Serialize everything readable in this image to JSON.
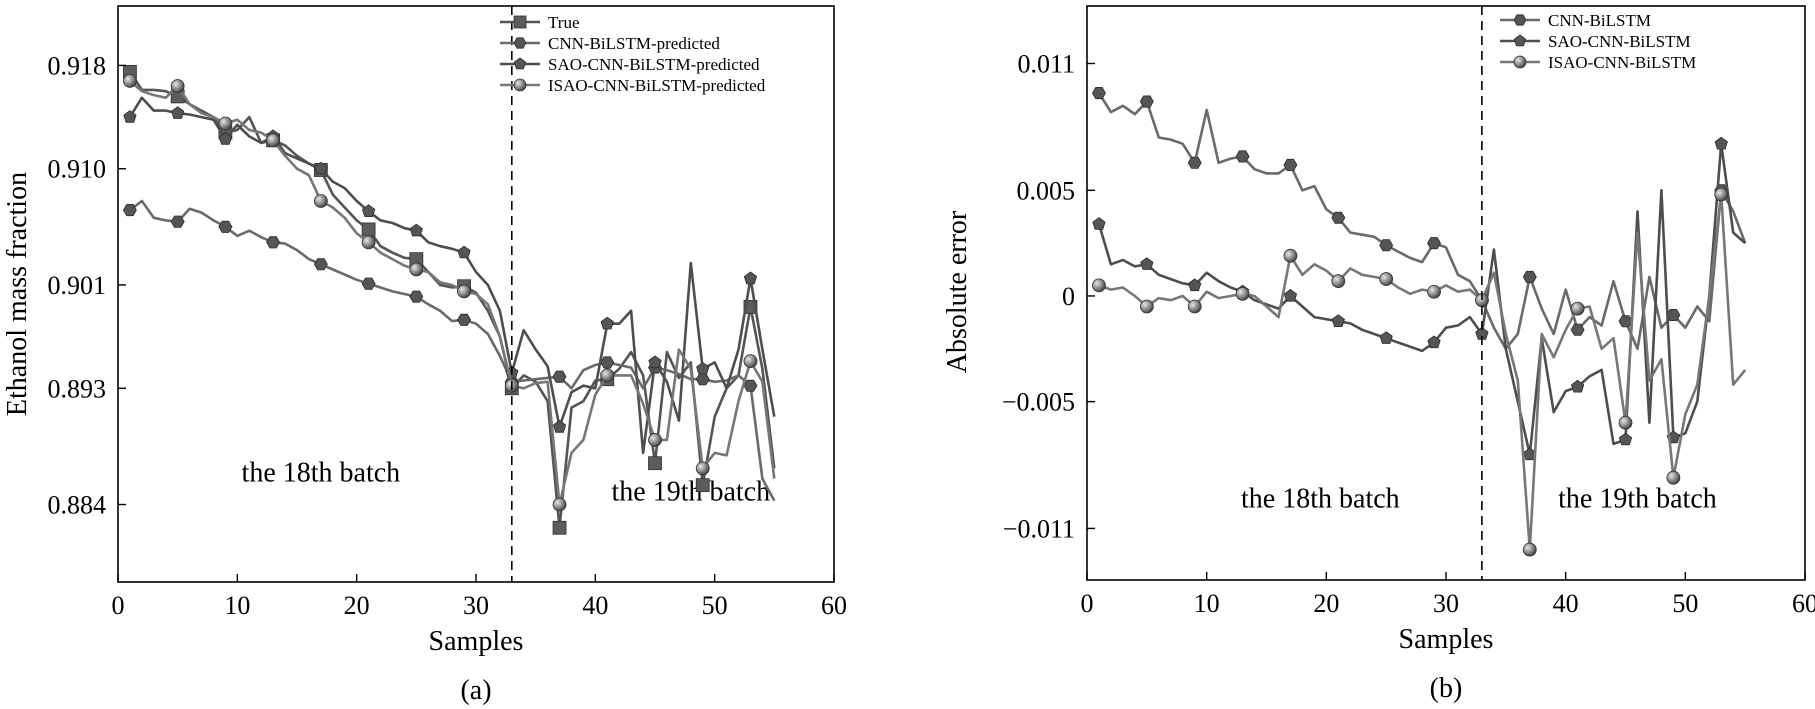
{
  "chart_data": [
    {
      "id": "a",
      "type": "line",
      "caption": "(a)",
      "xlabel": "Samples",
      "ylabel": "Ethanol mass fraction",
      "xlim": [
        0,
        60
      ],
      "ylim": [
        0.878,
        0.9226
      ],
      "xticks": [
        0,
        10,
        20,
        30,
        40,
        50,
        60
      ],
      "yticks": [
        0.884,
        0.893,
        0.901,
        0.91,
        0.918
      ],
      "ytick_labels": [
        "0.884",
        "0.893",
        "0.901",
        "0.910",
        "0.918"
      ],
      "grid": false,
      "legend_position": "top-right",
      "divider_x": 33,
      "annotations": [
        {
          "text": "the 18th batch",
          "x": 17,
          "y": 0.8858
        },
        {
          "text": "the 19th batch",
          "x": 48,
          "y": 0.8843
        }
      ],
      "x": [
        1,
        2,
        3,
        4,
        5,
        6,
        7,
        8,
        9,
        10,
        11,
        12,
        13,
        14,
        15,
        16,
        17,
        18,
        19,
        20,
        21,
        22,
        23,
        24,
        25,
        26,
        27,
        28,
        29,
        30,
        31,
        32,
        33,
        34,
        35,
        36,
        37,
        38,
        39,
        40,
        41,
        42,
        43,
        44,
        45,
        46,
        47,
        48,
        49,
        50,
        51,
        52,
        53,
        54,
        55
      ],
      "series": [
        {
          "name": "True",
          "marker": "square",
          "values": [
            0.9175,
            0.9161,
            0.9161,
            0.916,
            0.9156,
            0.915,
            0.9145,
            0.914,
            0.9128,
            0.913,
            0.914,
            0.912,
            0.9122,
            0.9118,
            0.911,
            0.9104,
            0.9099,
            0.908,
            0.907,
            0.906,
            0.9053,
            0.904,
            0.9035,
            0.9031,
            0.903,
            0.902,
            0.901,
            0.9008,
            0.9009,
            0.9004,
            0.899,
            0.897,
            0.893,
            0.894,
            0.8935,
            0.892,
            0.8822,
            0.8915,
            0.892,
            0.8936,
            0.8937,
            0.8945,
            0.8958,
            0.894,
            0.8872,
            0.8958,
            0.8938,
            0.895,
            0.8855,
            0.8908,
            0.893,
            0.894,
            0.8993,
            0.8945,
            0.8868
          ]
        },
        {
          "name": "CNN-BiLSTM-predicted",
          "marker": "hexagon",
          "values": [
            0.9068,
            0.9075,
            0.9062,
            0.906,
            0.9059,
            0.9069,
            0.9066,
            0.906,
            0.9055,
            0.9048,
            0.9052,
            0.9047,
            0.9043,
            0.9042,
            0.9037,
            0.903,
            0.9026,
            0.9022,
            0.9018,
            0.9014,
            0.9011,
            0.9008,
            0.9005,
            0.9003,
            0.9001,
            0.8995,
            0.899,
            0.8982,
            0.8983,
            0.898,
            0.8972,
            0.8955,
            0.8935,
            0.8936,
            0.8937,
            0.8938,
            0.8939,
            0.893,
            0.8944,
            0.8948,
            0.895,
            0.8948,
            0.8946,
            0.893,
            0.8946,
            0.8944,
            0.8941,
            0.8937,
            0.8937,
            0.8935,
            0.8936,
            0.894,
            0.8932,
            0.886,
            0.8843
          ]
        },
        {
          "name": "SAO-CNN-BiLSTM-predicted",
          "marker": "pentagon",
          "values": [
            0.914,
            0.9155,
            0.9145,
            0.9145,
            0.9143,
            0.9142,
            0.914,
            0.9138,
            0.9123,
            0.9134,
            0.9125,
            0.912,
            0.9125,
            0.9112,
            0.9108,
            0.9104,
            0.91,
            0.909,
            0.9085,
            0.9075,
            0.9067,
            0.906,
            0.9058,
            0.9054,
            0.9052,
            0.9043,
            0.904,
            0.9038,
            0.9035,
            0.902,
            0.901,
            0.899,
            0.8942,
            0.8975,
            0.896,
            0.8947,
            0.89,
            0.8927,
            0.8932,
            0.893,
            0.898,
            0.898,
            0.899,
            0.888,
            0.895,
            0.8935,
            0.8905,
            0.9027,
            0.8945,
            0.895,
            0.893,
            0.896,
            0.9015,
            0.896,
            0.8908
          ]
        },
        {
          "name": "ISAO-CNN-BiLSTM-predicted",
          "marker": "circle",
          "values": [
            0.9168,
            0.916,
            0.9157,
            0.9155,
            0.9164,
            0.915,
            0.9143,
            0.914,
            0.9135,
            0.9138,
            0.913,
            0.9128,
            0.9122,
            0.911,
            0.91,
            0.9095,
            0.9075,
            0.907,
            0.9062,
            0.905,
            0.9043,
            0.9035,
            0.903,
            0.9025,
            0.9022,
            0.902,
            0.9012,
            0.901,
            0.9005,
            0.9003,
            0.8995,
            0.897,
            0.8932,
            0.893,
            0.8934,
            0.8935,
            0.884,
            0.888,
            0.889,
            0.8925,
            0.894,
            0.894,
            0.894,
            0.8918,
            0.889,
            0.889,
            0.896,
            0.8945,
            0.8868,
            0.888,
            0.8878,
            0.892,
            0.8951,
            0.8935,
            0.886
          ]
        }
      ]
    },
    {
      "id": "b",
      "type": "line",
      "caption": "(b)",
      "xlabel": "Samples",
      "ylabel": "Absolute error",
      "xlim": [
        0,
        60
      ],
      "ylim": [
        -0.01344,
        0.01372
      ],
      "xticks": [
        0,
        10,
        20,
        30,
        40,
        50,
        60
      ],
      "yticks": [
        -0.011,
        -0.005,
        0,
        0.005,
        0.011
      ],
      "ytick_labels": [
        "−0.011",
        "−0.005",
        "0",
        "0.005",
        "0.011"
      ],
      "grid": false,
      "legend_position": "top-right",
      "divider_x": 33,
      "annotations": [
        {
          "text": "the 18th batch",
          "x": 19.5,
          "y": -0.01
        },
        {
          "text": "the 19th batch",
          "x": 46,
          "y": -0.01
        }
      ],
      "x": [
        1,
        2,
        3,
        4,
        5,
        6,
        7,
        8,
        9,
        10,
        11,
        12,
        13,
        14,
        15,
        16,
        17,
        18,
        19,
        20,
        21,
        22,
        23,
        24,
        25,
        26,
        27,
        28,
        29,
        30,
        31,
        32,
        33,
        34,
        35,
        36,
        37,
        38,
        39,
        40,
        41,
        42,
        43,
        44,
        45,
        46,
        47,
        48,
        49,
        50,
        51,
        52,
        53,
        54,
        55
      ],
      "series": [
        {
          "name": "CNN-BiLSTM",
          "marker": "hexagon",
          "values": [
            0.0096,
            0.0087,
            0.009,
            0.0086,
            0.0092,
            0.0075,
            0.0074,
            0.0072,
            0.0063,
            0.0088,
            0.0063,
            0.0065,
            0.0066,
            0.006,
            0.0058,
            0.0058,
            0.0062,
            0.005,
            0.0052,
            0.0041,
            0.0037,
            0.003,
            0.0029,
            0.0028,
            0.0024,
            0.0021,
            0.0018,
            0.0016,
            0.0025,
            0.0023,
            0.001,
            0.0007,
            -0.0002,
            -0.0015,
            -0.0025,
            -0.0018,
            0.0009,
            -0.0006,
            -0.0018,
            0.0003,
            -0.0016,
            -0.001,
            -0.0014,
            0.0007,
            -0.0012,
            -0.0025,
            0.0009,
            -0.0015,
            -0.0009,
            -0.0015,
            -0.0005,
            -0.0012,
            0.005,
            0.004,
            0.0025
          ]
        },
        {
          "name": "SAO-CNN-BiLSTM",
          "marker": "pentagon",
          "values": [
            0.0034,
            0.0015,
            0.0017,
            0.0014,
            0.0015,
            0.001,
            0.0008,
            0.0006,
            0.0005,
            0.0011,
            0.0007,
            0.0004,
            0.0002,
            -0.0002,
            -0.0004,
            -0.0006,
            0.0,
            -0.0005,
            -0.001,
            -0.0011,
            -0.0012,
            -0.0013,
            -0.0016,
            -0.0018,
            -0.002,
            -0.0022,
            -0.0024,
            -0.0026,
            -0.0022,
            -0.0015,
            -0.0014,
            -0.001,
            -0.0018,
            0.0022,
            -0.0025,
            -0.005,
            -0.0075,
            -0.002,
            -0.0055,
            -0.0045,
            -0.0043,
            -0.0038,
            -0.0035,
            -0.007,
            -0.0068,
            0.004,
            -0.006,
            0.005,
            -0.0067,
            -0.0065,
            -0.005,
            0.0,
            0.0072,
            0.003,
            0.0025
          ]
        },
        {
          "name": "ISAO-CNN-BiLSTM",
          "marker": "circle",
          "values": [
            0.0005,
            0.0003,
            0.0004,
            0.0,
            -0.0005,
            -0.0001,
            -0.0002,
            0.0,
            -0.0005,
            0.0002,
            -0.0001,
            0.0,
            0.0001,
            0.0,
            -0.0005,
            -0.001,
            0.0019,
            0.001,
            0.0015,
            0.0012,
            0.0007,
            0.0013,
            0.001,
            0.0009,
            0.0008,
            0.0004,
            0.0001,
            0.0003,
            0.0002,
            0.0005,
            0.0002,
            0.0003,
            -0.0002,
            0.0011,
            -0.0018,
            -0.004,
            -0.012,
            -0.0018,
            -0.0029,
            -0.0016,
            -0.0006,
            -0.0005,
            -0.0025,
            -0.002,
            -0.006,
            0.003,
            -0.004,
            -0.003,
            -0.0086,
            -0.0056,
            -0.0042,
            0.0,
            0.0048,
            -0.0042,
            -0.0035
          ]
        }
      ]
    }
  ]
}
